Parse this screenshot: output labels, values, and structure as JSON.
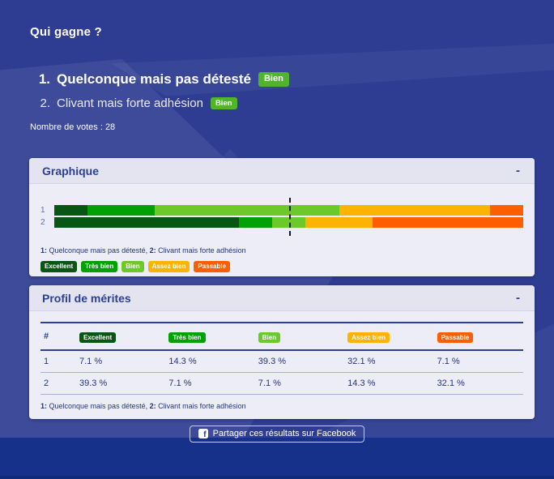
{
  "page": {
    "title": "Qui gagne ?",
    "votes_label": "Nombre de votes :",
    "votes_count": "28"
  },
  "ranking": [
    {
      "rank": "1.",
      "label": "Quelconque mais pas détesté",
      "mention": "Bien"
    },
    {
      "rank": "2.",
      "label": "Clivant mais forte adhésion",
      "mention": "Bien"
    }
  ],
  "mentions": [
    {
      "label": "Excellent",
      "color": "#075614"
    },
    {
      "label": "Très bien",
      "color": "#03a005"
    },
    {
      "label": "Bien",
      "color": "#6dc92a"
    },
    {
      "label": "Assez bien",
      "color": "#fdb301"
    },
    {
      "label": "Passable",
      "color": "#fd5e00"
    }
  ],
  "colors": {
    "background": "#2e3d92",
    "footer": "#16318a",
    "footer_strip": "#102a7c",
    "panel_header_bg": "#e4e4f1",
    "panel_body_bg": "#ecedf7",
    "accent_text": "#2b3f96",
    "ranking_badge": "#50b42d",
    "median_line": "#191919"
  },
  "chart_panel": {
    "title": "Graphique",
    "collapse_label": "-"
  },
  "chart_data": {
    "type": "bar",
    "stacked": true,
    "orientation": "horizontal",
    "categories": [
      "1",
      "2"
    ],
    "series": [
      {
        "name": "Excellent",
        "values": [
          7.1,
          39.3
        ],
        "color": "#075614"
      },
      {
        "name": "Très bien",
        "values": [
          14.3,
          7.1
        ],
        "color": "#03a005"
      },
      {
        "name": "Bien",
        "values": [
          39.3,
          7.1
        ],
        "color": "#6dc92a"
      },
      {
        "name": "Assez bien",
        "values": [
          32.1,
          14.3
        ],
        "color": "#fdb301"
      },
      {
        "name": "Passable",
        "values": [
          7.1,
          32.1
        ],
        "color": "#fd5e00"
      }
    ],
    "xlim": [
      0,
      100
    ],
    "median_line_pct": 50,
    "legend_position": "bottom",
    "grid": false
  },
  "item_caption": [
    {
      "text": "1:",
      "bold": true
    },
    {
      "text": " Quelconque mais pas détesté, ",
      "bold": false
    },
    {
      "text": "2:",
      "bold": true
    },
    {
      "text": " Clivant mais forte adhésion",
      "bold": false
    }
  ],
  "profile_panel": {
    "title": "Profil de mérites",
    "collapse_label": "-",
    "table": {
      "index_header": "#",
      "rows": [
        {
          "id": "1",
          "values": [
            "7.1 %",
            "14.3 %",
            "39.3 %",
            "32.1 %",
            "7.1 %"
          ]
        },
        {
          "id": "2",
          "values": [
            "39.3 %",
            "7.1 %",
            "7.1 %",
            "14.3 %",
            "32.1 %"
          ]
        }
      ]
    }
  },
  "share": {
    "label": "Partager ces résultats sur Facebook",
    "icon": "facebook-icon",
    "icon_letter": "f"
  }
}
